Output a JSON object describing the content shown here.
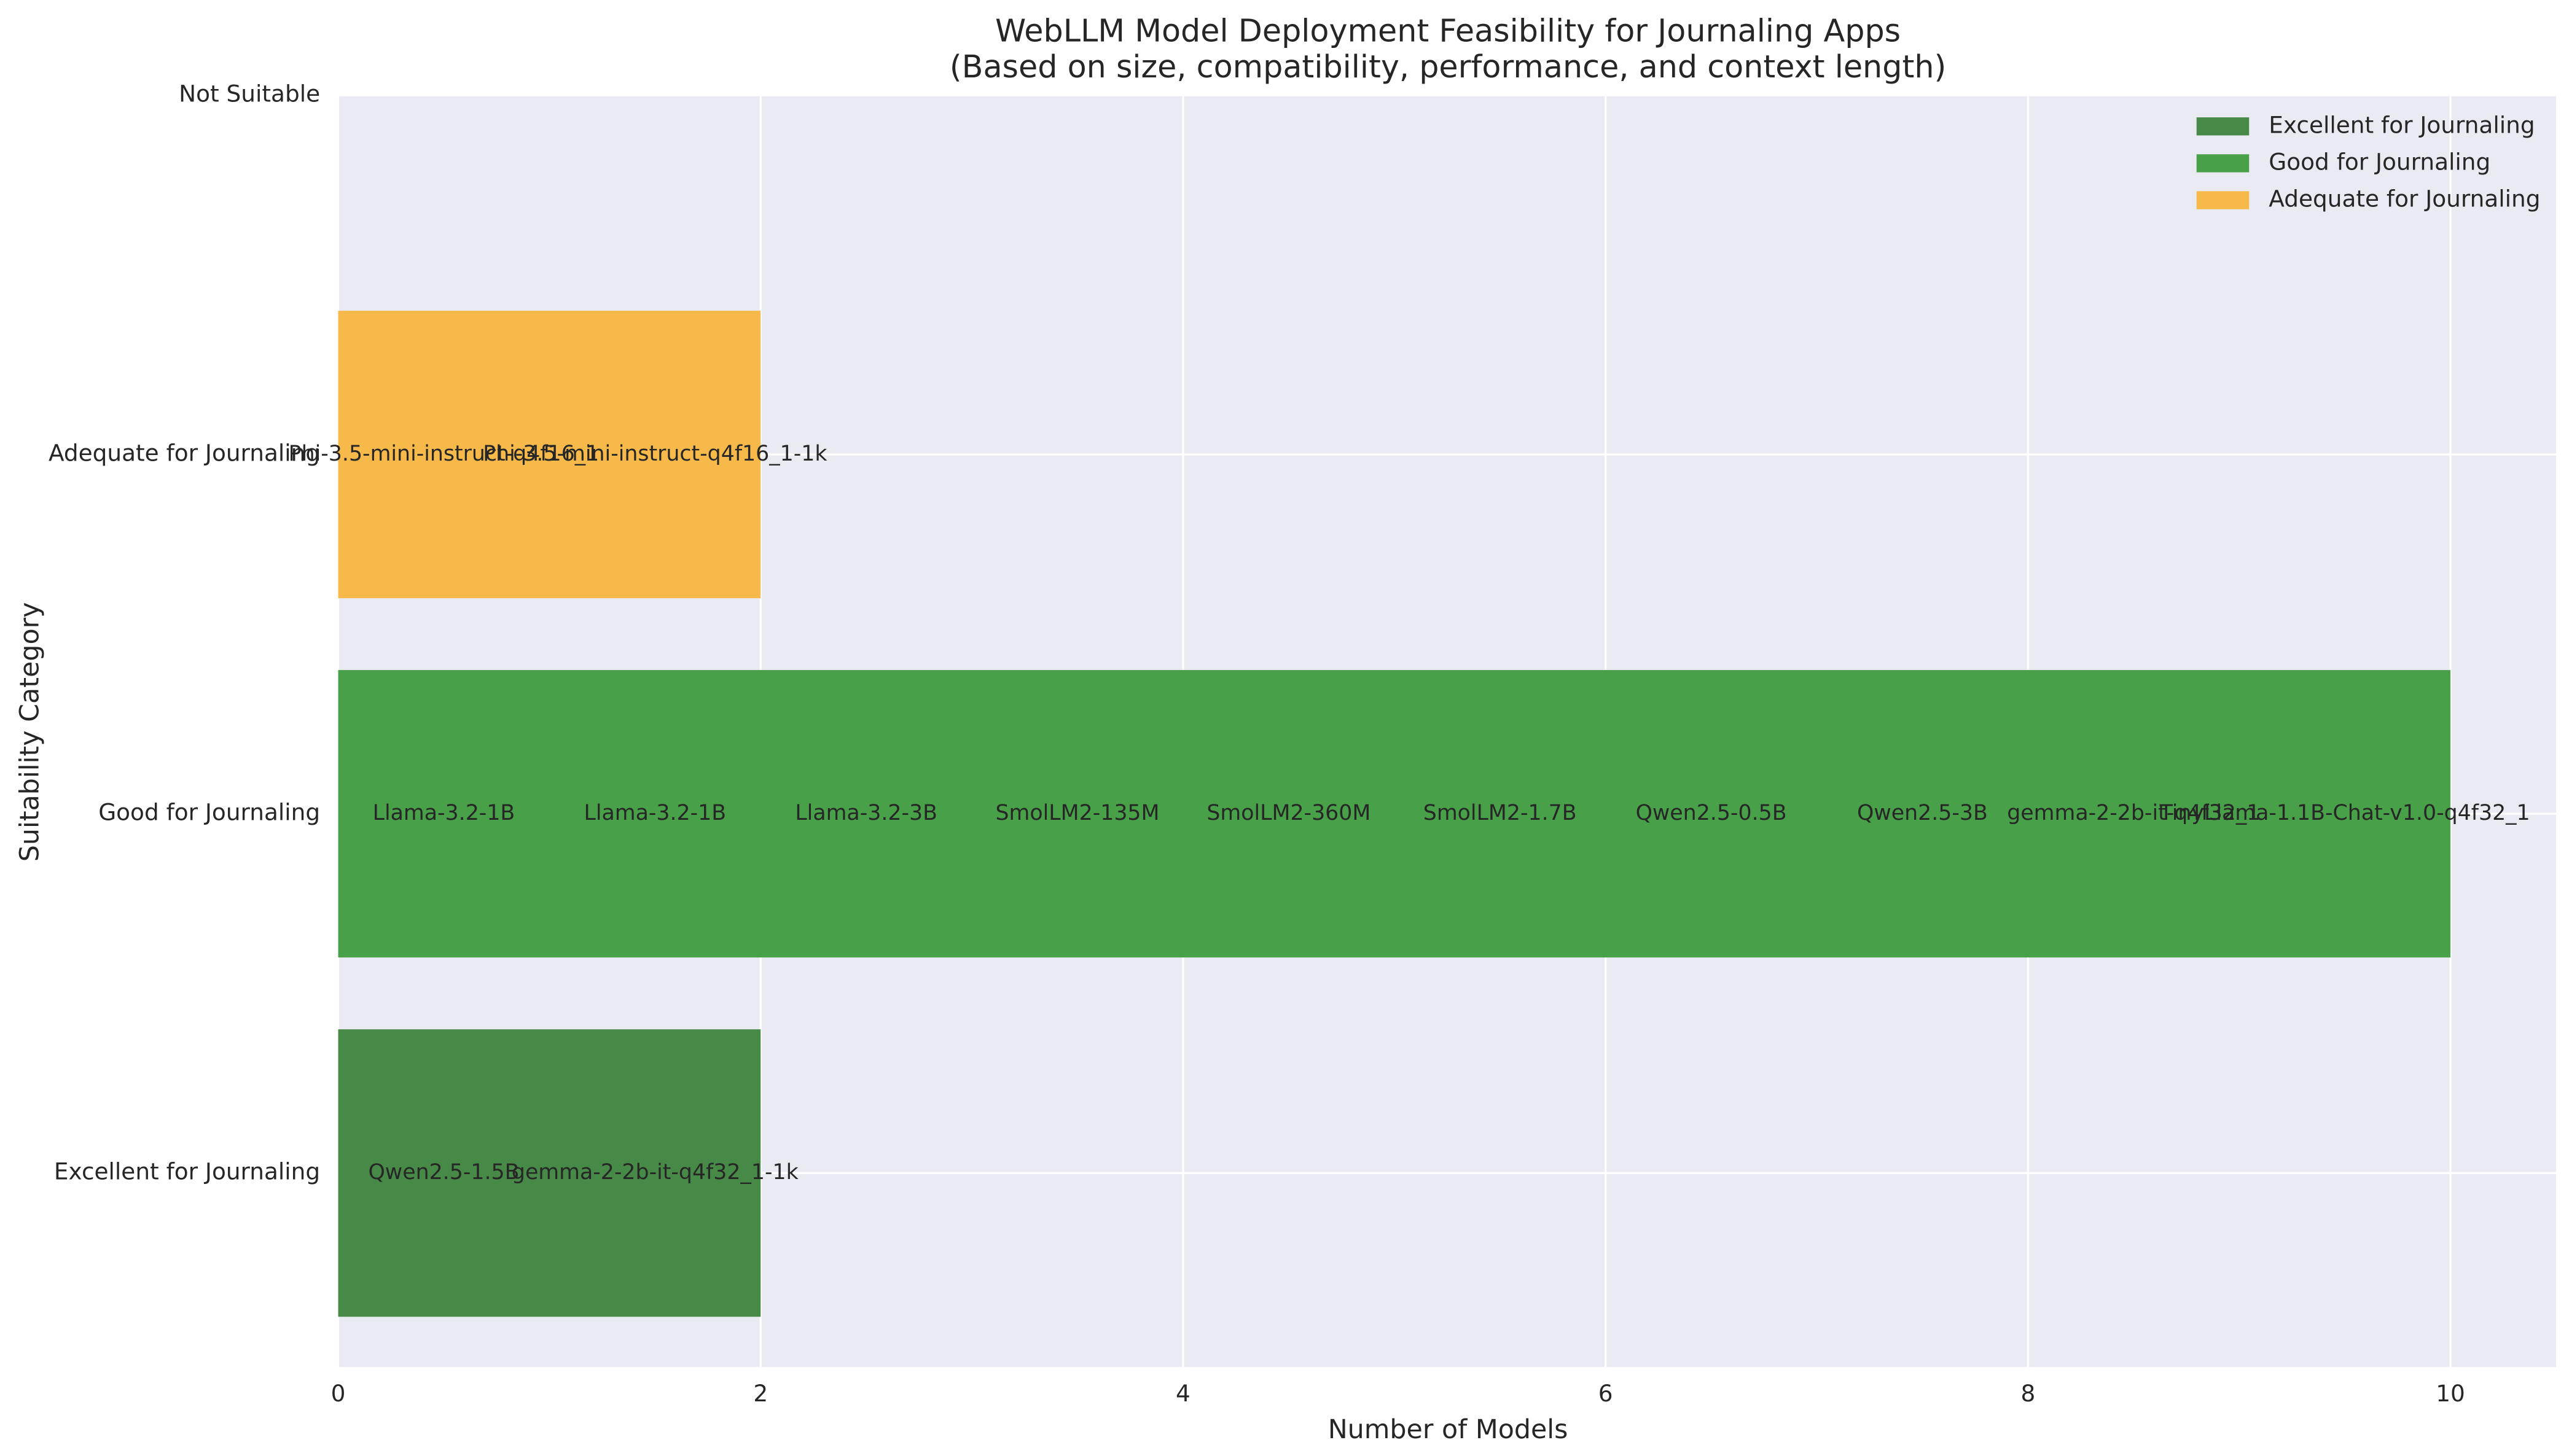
{
  "chart_data": {
    "type": "bar",
    "orientation": "horizontal",
    "title": "WebLLM Model Deployment Feasibility for Journaling Apps",
    "subtitle": "(Based on size, compatibility, performance, and context length)",
    "xlabel": "Number of Models",
    "ylabel": "Suitability Category",
    "categories": [
      "Excellent for Journaling",
      "Good for Journaling",
      "Adequate for Journaling",
      "Not Suitable"
    ],
    "series": [
      {
        "name": "Excellent for Journaling",
        "color": "#478a47",
        "values": [
          2,
          null,
          null,
          null
        ]
      },
      {
        "name": "Good for Journaling",
        "color": "#48a148",
        "values": [
          null,
          10,
          null,
          null
        ]
      },
      {
        "name": "Adequate for Journaling",
        "color": "#f6b94a",
        "values": [
          null,
          null,
          2,
          null
        ]
      }
    ],
    "model_labels": [
      [
        "Qwen2.5-1.5B",
        "gemma-2-2b-it-q4f32_1-1k"
      ],
      [
        "Llama-3.2-1B",
        "Llama-3.2-1B",
        "Llama-3.2-3B",
        "SmolLM2-135M",
        "SmolLM2-360M",
        "SmolLM2-1.7B",
        "Qwen2.5-0.5B",
        "Qwen2.5-3B",
        "gemma-2-2b-it-q4f32_1",
        "TinyLlama-1.1B-Chat-v1.0-q4f32_1"
      ],
      [
        "Phi-3.5-mini-instruct-q4f16_1",
        "Phi-3.5-mini-instruct-q4f16_1-1k"
      ],
      []
    ],
    "xlim": [
      0,
      10.5
    ],
    "xticks": [
      0,
      2,
      4,
      6,
      8,
      10
    ],
    "grid": true,
    "legend": "upper right"
  }
}
